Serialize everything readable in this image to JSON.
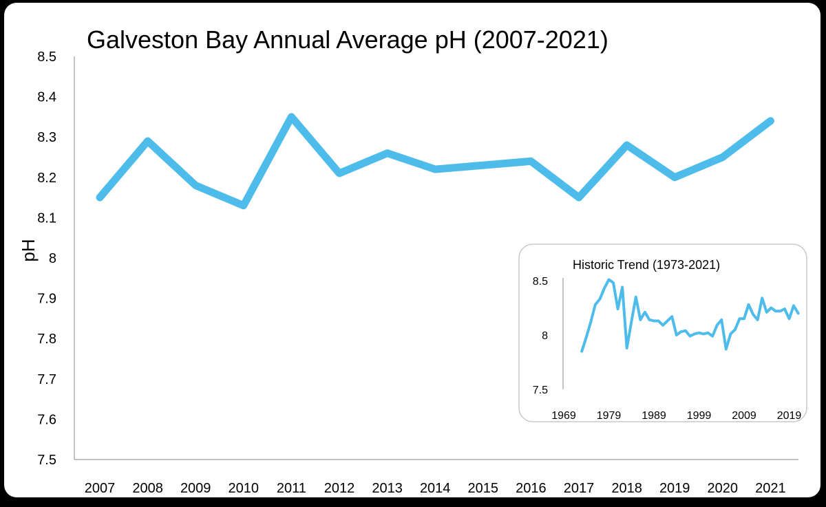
{
  "chart_data": [
    {
      "type": "line",
      "title": "Galveston Bay Annual Average pH (2007-2021)",
      "xlabel": "",
      "ylabel": "pH",
      "ylim": [
        7.5,
        8.5
      ],
      "yticks": [
        "8.5",
        "8.4",
        "8.3",
        "8.2",
        "8.1",
        "8",
        "7.9",
        "7.8",
        "7.7",
        "7.6",
        "7.5"
      ],
      "grid": false,
      "color": "#4DBCEA",
      "categories": [
        "2007",
        "2008",
        "2009",
        "2010",
        "2011",
        "2012",
        "2013",
        "2014",
        "2015",
        "2016",
        "2017",
        "2018",
        "2019",
        "2020",
        "2021"
      ],
      "values": [
        8.15,
        8.29,
        8.18,
        8.13,
        8.35,
        8.21,
        8.26,
        8.22,
        8.23,
        8.24,
        8.15,
        8.28,
        8.2,
        8.25,
        8.34
      ]
    },
    {
      "type": "line",
      "title": "Historic Trend (1973-2021)",
      "xlabel": "",
      "ylabel": "",
      "ylim": [
        7.5,
        8.5
      ],
      "yticks": [
        "8.5",
        "8",
        "7.5"
      ],
      "xticks": [
        "1969",
        "1979",
        "1989",
        "1999",
        "2009",
        "2019"
      ],
      "grid": false,
      "color": "#4DBCEA",
      "x": [
        1973,
        1974,
        1975,
        1976,
        1977,
        1978,
        1979,
        1980,
        1981,
        1982,
        1983,
        1984,
        1985,
        1986,
        1987,
        1988,
        1989,
        1990,
        1991,
        1992,
        1993,
        1994,
        1995,
        1996,
        1997,
        1998,
        1999,
        2000,
        2001,
        2002,
        2003,
        2004,
        2005,
        2006,
        2007,
        2008,
        2009,
        2010,
        2011,
        2012,
        2013,
        2014,
        2015,
        2016,
        2017,
        2018,
        2019,
        2020,
        2021
      ],
      "values": [
        7.85,
        7.98,
        8.12,
        8.28,
        8.33,
        8.43,
        8.51,
        8.48,
        8.24,
        8.44,
        7.88,
        8.12,
        8.35,
        8.14,
        8.21,
        8.14,
        8.13,
        8.13,
        8.09,
        8.13,
        8.17,
        8.0,
        8.03,
        8.04,
        7.99,
        8.01,
        8.02,
        8.01,
        8.02,
        7.99,
        8.09,
        8.14,
        7.87,
        8.01,
        8.05,
        8.15,
        8.15,
        8.28,
        8.19,
        8.14,
        8.34,
        8.21,
        8.25,
        8.22,
        8.22,
        8.24,
        8.15,
        8.27,
        8.2
      ]
    }
  ]
}
